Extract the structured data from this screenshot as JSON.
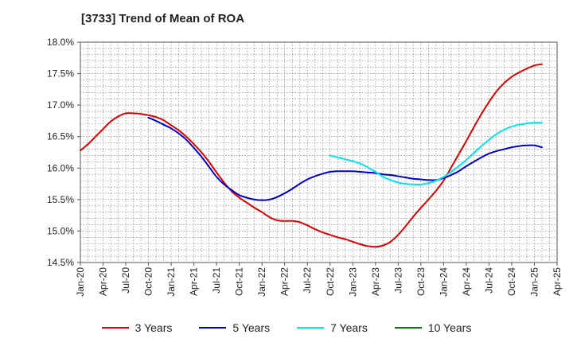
{
  "chart_data": {
    "type": "line",
    "title": "[3733]  Trend of Mean of ROA",
    "xlabel": "",
    "ylabel": "",
    "x_ticks": [
      "Jan-20",
      "Apr-20",
      "Jul-20",
      "Oct-20",
      "Jan-21",
      "Apr-21",
      "Jul-21",
      "Oct-21",
      "Jan-22",
      "Apr-22",
      "Jul-22",
      "Oct-22",
      "Jan-23",
      "Apr-23",
      "Jul-23",
      "Oct-23",
      "Jan-24",
      "Apr-24",
      "Jul-24",
      "Oct-24",
      "Jan-25",
      "Apr-25"
    ],
    "y_ticks": [
      "14.5%",
      "15.0%",
      "15.5%",
      "16.0%",
      "16.5%",
      "17.0%",
      "17.5%",
      "18.0%"
    ],
    "ylim": [
      14.5,
      18.0
    ],
    "x_range": [
      "Jan-20",
      "Apr-25"
    ],
    "grid": true,
    "legend_position": "bottom",
    "series": [
      {
        "name": "3 Years",
        "color": "#e00000",
        "points": [
          [
            "2020-01",
            16.28
          ],
          [
            "2020-02",
            16.38
          ],
          [
            "2020-03",
            16.5
          ],
          [
            "2020-04",
            16.62
          ],
          [
            "2020-05",
            16.74
          ],
          [
            "2020-06",
            16.82
          ],
          [
            "2020-07",
            16.87
          ],
          [
            "2020-08",
            16.87
          ],
          [
            "2020-09",
            16.86
          ],
          [
            "2020-10",
            16.84
          ],
          [
            "2020-11",
            16.81
          ],
          [
            "2020-12",
            16.76
          ],
          [
            "2021-01",
            16.68
          ],
          [
            "2021-02",
            16.6
          ],
          [
            "2021-03",
            16.5
          ],
          [
            "2021-04",
            16.38
          ],
          [
            "2021-05",
            16.25
          ],
          [
            "2021-06",
            16.1
          ],
          [
            "2021-07",
            15.93
          ],
          [
            "2021-08",
            15.77
          ],
          [
            "2021-09",
            15.63
          ],
          [
            "2021-10",
            15.53
          ],
          [
            "2021-11",
            15.45
          ],
          [
            "2021-12",
            15.37
          ],
          [
            "2022-01",
            15.3
          ],
          [
            "2022-02",
            15.22
          ],
          [
            "2022-03",
            15.17
          ],
          [
            "2022-04",
            15.16
          ],
          [
            "2022-05",
            15.16
          ],
          [
            "2022-06",
            15.14
          ],
          [
            "2022-07",
            15.09
          ],
          [
            "2022-08",
            15.03
          ],
          [
            "2022-09",
            14.98
          ],
          [
            "2022-10",
            14.94
          ],
          [
            "2022-11",
            14.9
          ],
          [
            "2022-12",
            14.87
          ],
          [
            "2023-01",
            14.83
          ],
          [
            "2023-02",
            14.79
          ],
          [
            "2023-03",
            14.76
          ],
          [
            "2023-04",
            14.75
          ],
          [
            "2023-05",
            14.77
          ],
          [
            "2023-06",
            14.83
          ],
          [
            "2023-07",
            14.94
          ],
          [
            "2023-08",
            15.08
          ],
          [
            "2023-09",
            15.23
          ],
          [
            "2023-10",
            15.37
          ],
          [
            "2023-11",
            15.5
          ],
          [
            "2023-12",
            15.64
          ],
          [
            "2024-01",
            15.8
          ],
          [
            "2024-02",
            16.01
          ],
          [
            "2024-03",
            16.22
          ],
          [
            "2024-04",
            16.43
          ],
          [
            "2024-05",
            16.65
          ],
          [
            "2024-06",
            16.86
          ],
          [
            "2024-07",
            17.05
          ],
          [
            "2024-08",
            17.22
          ],
          [
            "2024-09",
            17.35
          ],
          [
            "2024-10",
            17.45
          ],
          [
            "2024-11",
            17.52
          ],
          [
            "2024-12",
            17.58
          ],
          [
            "2025-01",
            17.63
          ],
          [
            "2025-02",
            17.65
          ]
        ]
      },
      {
        "name": "5 Years",
        "color": "#0000cc",
        "points": [
          [
            "2020-10",
            16.8
          ],
          [
            "2020-11",
            16.75
          ],
          [
            "2020-12",
            16.69
          ],
          [
            "2021-01",
            16.63
          ],
          [
            "2021-02",
            16.55
          ],
          [
            "2021-03",
            16.45
          ],
          [
            "2021-04",
            16.32
          ],
          [
            "2021-05",
            16.18
          ],
          [
            "2021-06",
            16.02
          ],
          [
            "2021-07",
            15.86
          ],
          [
            "2021-08",
            15.74
          ],
          [
            "2021-09",
            15.65
          ],
          [
            "2021-10",
            15.57
          ],
          [
            "2021-11",
            15.53
          ],
          [
            "2021-12",
            15.5
          ],
          [
            "2022-01",
            15.49
          ],
          [
            "2022-02",
            15.5
          ],
          [
            "2022-03",
            15.54
          ],
          [
            "2022-04",
            15.6
          ],
          [
            "2022-05",
            15.67
          ],
          [
            "2022-06",
            15.75
          ],
          [
            "2022-07",
            15.82
          ],
          [
            "2022-08",
            15.87
          ],
          [
            "2022-09",
            15.91
          ],
          [
            "2022-10",
            15.94
          ],
          [
            "2022-11",
            15.95
          ],
          [
            "2022-12",
            15.95
          ],
          [
            "2023-01",
            15.95
          ],
          [
            "2023-02",
            15.94
          ],
          [
            "2023-03",
            15.93
          ],
          [
            "2023-04",
            15.92
          ],
          [
            "2023-05",
            15.9
          ],
          [
            "2023-06",
            15.89
          ],
          [
            "2023-07",
            15.87
          ],
          [
            "2023-08",
            15.85
          ],
          [
            "2023-09",
            15.83
          ],
          [
            "2023-10",
            15.82
          ],
          [
            "2023-11",
            15.81
          ],
          [
            "2023-12",
            15.81
          ],
          [
            "2024-01",
            15.84
          ],
          [
            "2024-02",
            15.89
          ],
          [
            "2024-03",
            15.95
          ],
          [
            "2024-04",
            16.03
          ],
          [
            "2024-05",
            16.1
          ],
          [
            "2024-06",
            16.17
          ],
          [
            "2024-07",
            16.23
          ],
          [
            "2024-08",
            16.27
          ],
          [
            "2024-09",
            16.3
          ],
          [
            "2024-10",
            16.33
          ],
          [
            "2024-11",
            16.35
          ],
          [
            "2024-12",
            16.36
          ],
          [
            "2025-01",
            16.36
          ],
          [
            "2025-02",
            16.33
          ]
        ]
      },
      {
        "name": "7 Years",
        "color": "#00e5ee",
        "points": [
          [
            "2022-10",
            16.2
          ],
          [
            "2022-11",
            16.17
          ],
          [
            "2022-12",
            16.14
          ],
          [
            "2023-01",
            16.11
          ],
          [
            "2023-02",
            16.07
          ],
          [
            "2023-03",
            16.01
          ],
          [
            "2023-04",
            15.94
          ],
          [
            "2023-05",
            15.86
          ],
          [
            "2023-06",
            15.81
          ],
          [
            "2023-07",
            15.77
          ],
          [
            "2023-08",
            15.75
          ],
          [
            "2023-09",
            15.74
          ],
          [
            "2023-10",
            15.74
          ],
          [
            "2023-11",
            15.76
          ],
          [
            "2023-12",
            15.8
          ],
          [
            "2024-01",
            15.86
          ],
          [
            "2024-02",
            15.94
          ],
          [
            "2024-03",
            16.03
          ],
          [
            "2024-04",
            16.13
          ],
          [
            "2024-05",
            16.24
          ],
          [
            "2024-06",
            16.35
          ],
          [
            "2024-07",
            16.45
          ],
          [
            "2024-08",
            16.54
          ],
          [
            "2024-09",
            16.61
          ],
          [
            "2024-10",
            16.66
          ],
          [
            "2024-11",
            16.69
          ],
          [
            "2024-12",
            16.71
          ],
          [
            "2025-01",
            16.72
          ],
          [
            "2025-02",
            16.72
          ]
        ]
      },
      {
        "name": "10 Years",
        "color": "#007f00",
        "points": []
      }
    ]
  }
}
